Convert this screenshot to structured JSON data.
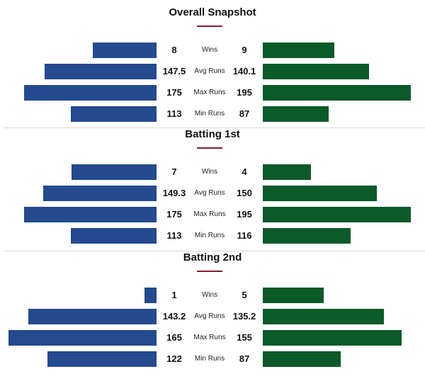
{
  "chart_data": [
    {
      "type": "bar",
      "title": "Overall Snapshot",
      "categories": [
        "Wins",
        "Avg Runs",
        "Max Runs",
        "Min Runs"
      ],
      "series": [
        {
          "values": [
            8,
            147.5,
            175,
            113
          ],
          "labels": [
            "8",
            "147.5",
            "175",
            "113"
          ],
          "color": "#244a8f"
        },
        {
          "values": [
            9,
            140.1,
            195,
            87
          ],
          "labels": [
            "9",
            "140.1",
            "195",
            "87"
          ],
          "color": "#0b5a28"
        }
      ]
    },
    {
      "type": "bar",
      "title": "Batting 1st",
      "categories": [
        "Wins",
        "Avg Runs",
        "Max Runs",
        "Min Runs"
      ],
      "series": [
        {
          "values": [
            7,
            149.3,
            175,
            113
          ],
          "labels": [
            "7",
            "149.3",
            "175",
            "113"
          ],
          "color": "#244a8f"
        },
        {
          "values": [
            4,
            150,
            195,
            116
          ],
          "labels": [
            "4",
            "150",
            "195",
            "116"
          ],
          "color": "#0b5a28"
        }
      ]
    },
    {
      "type": "bar",
      "title": "Batting 2nd",
      "categories": [
        "Wins",
        "Avg Runs",
        "Max Runs",
        "Min Runs"
      ],
      "series": [
        {
          "values": [
            1,
            143.2,
            165,
            122
          ],
          "labels": [
            "1",
            "143.2",
            "165",
            "122"
          ],
          "color": "#244a8f"
        },
        {
          "values": [
            5,
            135.2,
            155,
            87
          ],
          "labels": [
            "5",
            "135.2",
            "155",
            "87"
          ],
          "color": "#0b5a28"
        }
      ]
    }
  ],
  "colors": {
    "accent": "#8b1a2b",
    "left_team": "#244a8f",
    "right_team": "#0b5a28"
  }
}
